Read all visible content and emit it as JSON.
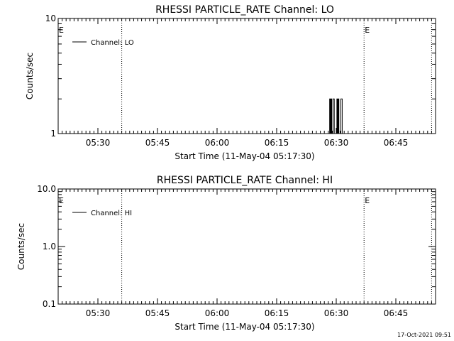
{
  "stamp": "17-Oct-2021 09:51",
  "chart_data": [
    {
      "type": "line",
      "title": "RHESSI PARTICLE_RATE Channel: LO",
      "xlabel": "Start Time (11-May-04 05:17:30)",
      "ylabel": "Counts/sec",
      "yscale": "log",
      "ylim": [
        1,
        10
      ],
      "xlim": [
        "05:20",
        "06:55"
      ],
      "x_ticks": [
        "05:30",
        "05:45",
        "06:00",
        "06:15",
        "06:30",
        "06:45"
      ],
      "y_ticks": [
        "1",
        "10"
      ],
      "legend": "Channel: LO",
      "flags": [
        {
          "time": "05:20",
          "label": "E"
        },
        {
          "time": "06:37",
          "label": "E"
        }
      ],
      "event_lines": [
        "05:36",
        "06:37",
        "06:54"
      ],
      "series": [
        {
          "name": "Channel: LO",
          "x": [
            "06:28:00",
            "06:28:10",
            "06:28:20",
            "06:28:30",
            "06:28:40",
            "06:28:50",
            "06:29:00",
            "06:29:10",
            "06:29:20",
            "06:29:30",
            "06:29:40",
            "06:29:50",
            "06:30:00",
            "06:30:10",
            "06:30:20",
            "06:30:30",
            "06:30:40",
            "06:30:50",
            "06:31:00",
            "06:31:10",
            "06:31:20",
            "06:31:30"
          ],
          "y": [
            1,
            1,
            2,
            1,
            2,
            1,
            1,
            2,
            2,
            1,
            1,
            1,
            1,
            2,
            1,
            2,
            1,
            1,
            1,
            2,
            2,
            1
          ]
        }
      ]
    },
    {
      "type": "line",
      "title": "RHESSI PARTICLE_RATE Channel: HI",
      "xlabel": "Start Time (11-May-04 05:17:30)",
      "ylabel": "Counts/sec",
      "yscale": "log",
      "ylim": [
        0.1,
        10
      ],
      "xlim": [
        "05:20",
        "06:55"
      ],
      "x_ticks": [
        "05:30",
        "05:45",
        "06:00",
        "06:15",
        "06:30",
        "06:45"
      ],
      "y_ticks": [
        "0.1",
        "1.0",
        "10.0"
      ],
      "legend": "Channel: HI",
      "flags": [
        {
          "time": "05:20",
          "label": "E"
        },
        {
          "time": "06:37",
          "label": "E"
        }
      ],
      "event_lines": [
        "05:36",
        "06:37",
        "06:54"
      ],
      "series": [
        {
          "name": "Channel: HI",
          "x": [],
          "y": []
        }
      ]
    }
  ]
}
